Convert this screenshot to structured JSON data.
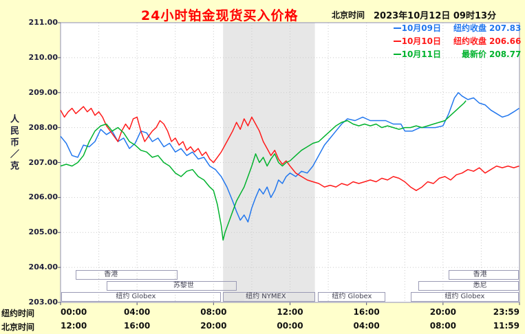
{
  "header": {
    "title": "24小时铂金现货买入价格",
    "clock_label": "北京时间",
    "clock_value": "2023年10月12日 09时13分"
  },
  "colors": {
    "background": "#FFFFCC",
    "plot_background": "#FFFFFF",
    "band": "#E7E7E7",
    "grid": "#C9C9C9",
    "title": "#FF0000",
    "axis_text": "#20203C",
    "blue": "#2277EE",
    "red": "#FF1A1A",
    "green": "#00B22D"
  },
  "legend": {
    "items": [
      {
        "date": "10月09日",
        "desc": "纽约收盘",
        "value": "207.83",
        "color": "#2277EE"
      },
      {
        "date": "10月10日",
        "desc": "纽约收盘",
        "value": "206.66",
        "color": "#FF1A1A"
      },
      {
        "date": "10月11日",
        "desc": "最新价",
        "value": "208.77",
        "color": "#00B22D"
      }
    ]
  },
  "chart_data": {
    "type": "line",
    "title": "24小时铂金现货买入价格",
    "ylabel": "人民币／克",
    "ylim": [
      203,
      211
    ],
    "x_hours": [
      0,
      24
    ],
    "grid": true,
    "legend_position": "top-right",
    "y_ticks": [
      "211.00",
      "210.00",
      "209.00",
      "208.00",
      "207.00",
      "206.00",
      "205.00",
      "204.00",
      "203.00"
    ],
    "x_axis": {
      "tick_hours": [
        0,
        4,
        8,
        12,
        16,
        20,
        24
      ],
      "ny": {
        "label": "纽约时间",
        "ticks": [
          "00:00",
          "04:00",
          "08:00",
          "12:00",
          "16:00",
          "20:00",
          "23:59"
        ]
      },
      "beijing": {
        "label": "北京时间",
        "ticks": [
          "12:00",
          "16:00",
          "20:00",
          "00:00",
          "04:00",
          "08:00",
          "11:59"
        ]
      }
    },
    "band": {
      "start": 8.5,
      "end": 13.3
    },
    "sessions": [
      {
        "id": "hongkong-1",
        "label": "香港",
        "row": 0,
        "start": 0.8,
        "end": 6.1,
        "label_hour": 2.6
      },
      {
        "id": "zurich",
        "label": "苏黎世",
        "row": 1,
        "start": 2.4,
        "end": 9.2,
        "label_hour": 6.4
      },
      {
        "id": "ny-globex-1",
        "label": "纽约 Globex",
        "row": 2,
        "start": 0.05,
        "end": 8.4,
        "label_hour": 3.9
      },
      {
        "id": "ny-nymex",
        "label": "纽约 NYMEX",
        "row": 2,
        "start": 8.5,
        "end": 13.3,
        "label_hour": 10.7,
        "highlight": true
      },
      {
        "id": "ny-globex-2",
        "label": "纽约 Globex",
        "row": 2,
        "start": 13.45,
        "end": 17.0,
        "label_hour": 15.2
      },
      {
        "id": "ny-globex-3",
        "label": "纽约 Globex",
        "row": 2,
        "start": 18.3,
        "end": 23.95,
        "label_hour": 21.1
      },
      {
        "id": "sydney",
        "label": "悉尼",
        "row": 1,
        "start": 18.7,
        "end": 23.95,
        "label_hour": 21.9
      },
      {
        "id": "hongkong-2",
        "label": "香港",
        "row": 0,
        "start": 20.3,
        "end": 23.95,
        "label_hour": 21.9
      }
    ],
    "series": [
      {
        "name": "10月09日 纽约收盘",
        "value": 207.83,
        "color": "#2277EE",
        "points": [
          [
            0,
            207.75
          ],
          [
            0.3,
            207.55
          ],
          [
            0.6,
            207.2
          ],
          [
            0.9,
            207.15
          ],
          [
            1.2,
            207.5
          ],
          [
            1.5,
            207.45
          ],
          [
            1.8,
            207.6
          ],
          [
            2.1,
            207.95
          ],
          [
            2.4,
            207.8
          ],
          [
            2.7,
            207.9
          ],
          [
            3,
            207.6
          ],
          [
            3.3,
            207.7
          ],
          [
            3.6,
            207.4
          ],
          [
            3.9,
            207.55
          ],
          [
            4.2,
            207.9
          ],
          [
            4.5,
            207.85
          ],
          [
            4.8,
            207.6
          ],
          [
            5.1,
            207.7
          ],
          [
            5.4,
            207.45
          ],
          [
            5.7,
            207.55
          ],
          [
            6,
            207.3
          ],
          [
            6.3,
            207.4
          ],
          [
            6.6,
            207.2
          ],
          [
            6.9,
            207.3
          ],
          [
            7.2,
            207.1
          ],
          [
            7.5,
            207.15
          ],
          [
            7.8,
            206.9
          ],
          [
            8.1,
            206.8
          ],
          [
            8.4,
            206.6
          ],
          [
            8.7,
            206.3
          ],
          [
            9,
            205.9
          ],
          [
            9.2,
            205.6
          ],
          [
            9.4,
            205.35
          ],
          [
            9.6,
            205.5
          ],
          [
            9.8,
            205.3
          ],
          [
            10,
            205.7
          ],
          [
            10.2,
            206.0
          ],
          [
            10.4,
            206.25
          ],
          [
            10.6,
            206.1
          ],
          [
            10.8,
            206.3
          ],
          [
            11,
            206.0
          ],
          [
            11.2,
            206.2
          ],
          [
            11.4,
            206.5
          ],
          [
            11.6,
            206.4
          ],
          [
            11.8,
            206.6
          ],
          [
            12,
            206.7
          ],
          [
            12.3,
            206.6
          ],
          [
            12.6,
            206.75
          ],
          [
            12.9,
            206.7
          ],
          [
            13.2,
            206.9
          ],
          [
            13.5,
            207.2
          ],
          [
            13.8,
            207.5
          ],
          [
            14.1,
            207.7
          ],
          [
            14.4,
            207.9
          ],
          [
            14.7,
            208.1
          ],
          [
            15,
            208.25
          ],
          [
            15.4,
            208.2
          ],
          [
            15.8,
            208.3
          ],
          [
            16.2,
            208.2
          ],
          [
            16.6,
            208.2
          ],
          [
            17,
            208.2
          ],
          [
            17.4,
            208.1
          ],
          [
            17.8,
            208.1
          ],
          [
            18,
            207.9
          ],
          [
            18.4,
            207.9
          ],
          [
            18.8,
            208.0
          ],
          [
            19.2,
            208.0
          ],
          [
            19.6,
            208.0
          ],
          [
            20,
            208.05
          ],
          [
            20.3,
            208.4
          ],
          [
            20.6,
            208.85
          ],
          [
            20.8,
            209.0
          ],
          [
            21,
            208.9
          ],
          [
            21.3,
            208.8
          ],
          [
            21.6,
            208.85
          ],
          [
            21.9,
            208.7
          ],
          [
            22.2,
            208.65
          ],
          [
            22.5,
            208.5
          ],
          [
            22.8,
            208.4
          ],
          [
            23.1,
            208.3
          ],
          [
            23.4,
            208.35
          ],
          [
            23.7,
            208.45
          ],
          [
            23.98,
            208.55
          ]
        ]
      },
      {
        "name": "10月10日 纽约收盘",
        "value": 206.66,
        "color": "#FF1A1A",
        "points": [
          [
            0,
            208.5
          ],
          [
            0.2,
            208.3
          ],
          [
            0.4,
            208.45
          ],
          [
            0.6,
            208.55
          ],
          [
            0.8,
            208.4
          ],
          [
            1,
            208.5
          ],
          [
            1.2,
            208.6
          ],
          [
            1.4,
            208.45
          ],
          [
            1.6,
            208.55
          ],
          [
            1.8,
            208.35
          ],
          [
            2,
            208.45
          ],
          [
            2.2,
            208.3
          ],
          [
            2.4,
            208.05
          ],
          [
            2.6,
            207.9
          ],
          [
            2.8,
            207.75
          ],
          [
            3,
            207.6
          ],
          [
            3.2,
            207.9
          ],
          [
            3.4,
            208.1
          ],
          [
            3.6,
            207.95
          ],
          [
            3.8,
            208.25
          ],
          [
            4,
            208.3
          ],
          [
            4.2,
            207.9
          ],
          [
            4.4,
            207.6
          ],
          [
            4.6,
            207.75
          ],
          [
            4.8,
            207.9
          ],
          [
            5,
            208.0
          ],
          [
            5.2,
            208.2
          ],
          [
            5.4,
            208.1
          ],
          [
            5.6,
            207.9
          ],
          [
            5.8,
            207.6
          ],
          [
            6,
            207.7
          ],
          [
            6.2,
            207.5
          ],
          [
            6.4,
            207.6
          ],
          [
            6.6,
            207.35
          ],
          [
            6.8,
            207.45
          ],
          [
            7,
            207.3
          ],
          [
            7.2,
            207.4
          ],
          [
            7.4,
            207.2
          ],
          [
            7.6,
            207.3
          ],
          [
            7.8,
            207.1
          ],
          [
            8,
            207.0
          ],
          [
            8.2,
            207.15
          ],
          [
            8.4,
            207.3
          ],
          [
            8.6,
            207.5
          ],
          [
            8.8,
            207.7
          ],
          [
            9,
            207.9
          ],
          [
            9.2,
            208.15
          ],
          [
            9.4,
            207.95
          ],
          [
            9.6,
            208.25
          ],
          [
            9.8,
            208.05
          ],
          [
            10,
            208.3
          ],
          [
            10.2,
            208.1
          ],
          [
            10.4,
            207.9
          ],
          [
            10.6,
            207.6
          ],
          [
            10.8,
            207.4
          ],
          [
            11,
            207.2
          ],
          [
            11.2,
            207.35
          ],
          [
            11.4,
            207.1
          ],
          [
            11.6,
            206.95
          ],
          [
            11.8,
            207.05
          ],
          [
            12,
            206.9
          ],
          [
            12.3,
            206.7
          ],
          [
            12.6,
            206.6
          ],
          [
            12.9,
            206.5
          ],
          [
            13.2,
            206.45
          ],
          [
            13.5,
            206.4
          ],
          [
            13.8,
            206.3
          ],
          [
            14.1,
            206.35
          ],
          [
            14.4,
            206.3
          ],
          [
            14.7,
            206.4
          ],
          [
            15,
            206.35
          ],
          [
            15.3,
            206.45
          ],
          [
            15.6,
            206.4
          ],
          [
            15.9,
            206.45
          ],
          [
            16.2,
            206.5
          ],
          [
            16.5,
            206.45
          ],
          [
            16.8,
            206.55
          ],
          [
            17.1,
            206.5
          ],
          [
            17.4,
            206.6
          ],
          [
            17.7,
            206.55
          ],
          [
            18,
            206.45
          ],
          [
            18.3,
            206.3
          ],
          [
            18.6,
            206.2
          ],
          [
            18.9,
            206.3
          ],
          [
            19.2,
            206.45
          ],
          [
            19.5,
            206.4
          ],
          [
            19.8,
            206.55
          ],
          [
            20.1,
            206.6
          ],
          [
            20.4,
            206.5
          ],
          [
            20.7,
            206.65
          ],
          [
            21,
            206.7
          ],
          [
            21.3,
            206.8
          ],
          [
            21.6,
            206.75
          ],
          [
            21.9,
            206.85
          ],
          [
            22.2,
            206.7
          ],
          [
            22.5,
            206.8
          ],
          [
            22.8,
            206.9
          ],
          [
            23.1,
            206.85
          ],
          [
            23.4,
            206.9
          ],
          [
            23.7,
            206.85
          ],
          [
            23.98,
            206.9
          ]
        ]
      },
      {
        "name": "10月11日 最新价",
        "value": 208.77,
        "color": "#00B22D",
        "points": [
          [
            0,
            206.9
          ],
          [
            0.3,
            206.95
          ],
          [
            0.6,
            206.9
          ],
          [
            0.9,
            207.0
          ],
          [
            1.2,
            207.2
          ],
          [
            1.5,
            207.6
          ],
          [
            1.8,
            207.9
          ],
          [
            2.1,
            208.05
          ],
          [
            2.4,
            208.1
          ],
          [
            2.7,
            207.9
          ],
          [
            3,
            208.0
          ],
          [
            3.3,
            207.85
          ],
          [
            3.6,
            207.6
          ],
          [
            3.9,
            207.5
          ],
          [
            4.2,
            207.35
          ],
          [
            4.5,
            207.3
          ],
          [
            4.8,
            207.15
          ],
          [
            5.1,
            207.2
          ],
          [
            5.4,
            207.0
          ],
          [
            5.7,
            206.9
          ],
          [
            6,
            206.7
          ],
          [
            6.3,
            206.6
          ],
          [
            6.6,
            206.75
          ],
          [
            6.9,
            206.8
          ],
          [
            7.2,
            206.6
          ],
          [
            7.5,
            206.5
          ],
          [
            7.8,
            206.3
          ],
          [
            8,
            206.2
          ],
          [
            8.2,
            205.8
          ],
          [
            8.4,
            205.2
          ],
          [
            8.5,
            204.78
          ],
          [
            8.6,
            205.0
          ],
          [
            8.8,
            205.3
          ],
          [
            9,
            205.6
          ],
          [
            9.2,
            205.9
          ],
          [
            9.4,
            206.1
          ],
          [
            9.6,
            206.3
          ],
          [
            9.8,
            206.6
          ],
          [
            10,
            206.9
          ],
          [
            10.2,
            207.25
          ],
          [
            10.4,
            207.0
          ],
          [
            10.6,
            207.15
          ],
          [
            10.8,
            206.9
          ],
          [
            11,
            207.1
          ],
          [
            11.2,
            207.25
          ],
          [
            11.4,
            207.0
          ],
          [
            11.6,
            206.9
          ],
          [
            11.8,
            207.0
          ],
          [
            12,
            207.05
          ],
          [
            12.3,
            207.2
          ],
          [
            12.6,
            207.35
          ],
          [
            12.9,
            207.45
          ],
          [
            13.2,
            207.55
          ],
          [
            13.5,
            207.6
          ],
          [
            13.8,
            207.75
          ],
          [
            14.1,
            207.9
          ],
          [
            14.4,
            208.05
          ],
          [
            14.7,
            208.15
          ],
          [
            15,
            208.2
          ],
          [
            15.3,
            208.1
          ],
          [
            15.6,
            208.05
          ],
          [
            15.9,
            208.1
          ],
          [
            16.2,
            208.05
          ],
          [
            16.5,
            208.1
          ],
          [
            16.8,
            208.0
          ],
          [
            17.1,
            208.05
          ],
          [
            17.4,
            208.0
          ],
          [
            17.7,
            207.95
          ],
          [
            18,
            208.0
          ],
          [
            18.3,
            208.0
          ],
          [
            18.6,
            208.05
          ],
          [
            18.9,
            208.0
          ],
          [
            19.2,
            208.05
          ],
          [
            19.5,
            208.1
          ],
          [
            19.8,
            208.15
          ],
          [
            20.1,
            208.2
          ],
          [
            20.4,
            208.35
          ],
          [
            20.7,
            208.5
          ],
          [
            20.9,
            208.6
          ],
          [
            21.1,
            208.7
          ],
          [
            21.2,
            208.77
          ]
        ]
      }
    ]
  }
}
